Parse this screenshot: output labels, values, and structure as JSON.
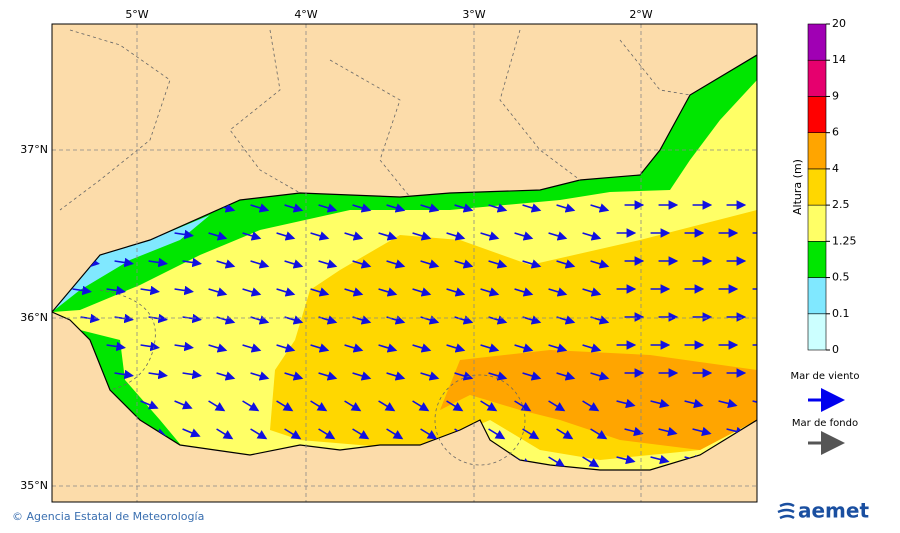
{
  "map": {
    "lon_labels": [
      "5°W",
      "4°W",
      "3°W",
      "2°W"
    ],
    "lat_labels": [
      "37°N",
      "36°N",
      "35°N"
    ],
    "legend": {
      "title": "Altura (m)",
      "levels": [
        0,
        0.1,
        0.5,
        1.25,
        2.5,
        4,
        6,
        9,
        14,
        20
      ],
      "colors": [
        "#ccffff",
        "#80e8ff",
        "#00e600",
        "#ffff66",
        "#ffd700",
        "#ffa500",
        "#ff0000",
        "#e6006e",
        "#a000b4"
      ],
      "wind_sea": "Mar de viento",
      "swell": "Mar de fondo"
    },
    "footer": {
      "credit": "© Agencia Estatal de Meteorología",
      "logo": "aemet"
    }
  }
}
